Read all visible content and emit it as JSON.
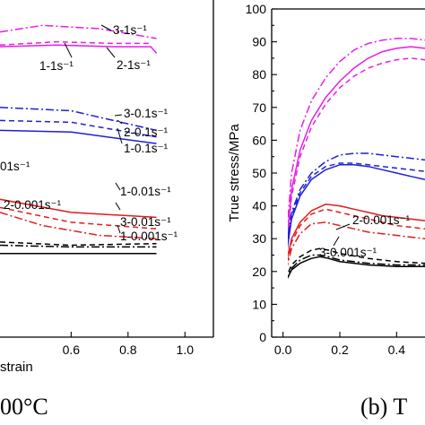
{
  "colors": {
    "magenta": "#e61ee6",
    "blue": "#1f1fd6",
    "red": "#e01c1c",
    "black": "#000000"
  },
  "chart_data": [
    {
      "type": "line",
      "panel": "left",
      "caption": "00°C",
      "xlabel": "strain",
      "ylabel": "",
      "x_tick_labels": [
        "0.6",
        "0.8",
        "1.0"
      ],
      "xlim": [
        0.35,
        1.1
      ],
      "ylim": [
        0,
        100
      ],
      "grid": false,
      "annotations": [
        "3-1s⁻¹",
        "1-1s⁻¹",
        "2-1s⁻¹",
        "3-0.1s⁻¹",
        "2-0.1s⁻¹",
        "1-0.1s⁻¹",
        "01s⁻¹",
        "1-0.01s⁻¹",
        "2-0.001s⁻¹",
        "3-0.01s⁻¹",
        "1-0.001s⁻¹"
      ],
      "series": [
        {
          "color": "magenta",
          "dash": "dashdot",
          "x": [
            0.35,
            0.5,
            0.7,
            0.9
          ],
          "y": [
            93,
            95,
            94,
            91
          ]
        },
        {
          "color": "magenta",
          "dash": "dash",
          "x": [
            0.35,
            0.55,
            0.75,
            0.88
          ],
          "y": [
            89,
            90,
            89.5,
            89.5
          ]
        },
        {
          "color": "magenta",
          "dash": "solid",
          "x": [
            0.35,
            0.55,
            0.75,
            0.88,
            0.9
          ],
          "y": [
            88.5,
            89,
            88.5,
            88.5,
            86.5
          ]
        },
        {
          "color": "blue",
          "dash": "dashdot",
          "x": [
            0.35,
            0.6,
            0.9
          ],
          "y": [
            70,
            69,
            63
          ]
        },
        {
          "color": "blue",
          "dash": "dash",
          "x": [
            0.35,
            0.6,
            0.9
          ],
          "y": [
            66,
            65.5,
            61
          ]
        },
        {
          "color": "blue",
          "dash": "solid",
          "x": [
            0.35,
            0.6,
            0.9
          ],
          "y": [
            63,
            62.5,
            59
          ]
        },
        {
          "color": "red",
          "dash": "solid",
          "x": [
            0.35,
            0.6,
            0.9
          ],
          "y": [
            42,
            38,
            36.5
          ]
        },
        {
          "color": "red",
          "dash": "dash",
          "x": [
            0.35,
            0.6,
            0.9
          ],
          "y": [
            39.5,
            35,
            33
          ]
        },
        {
          "color": "red",
          "dash": "dashdot",
          "x": [
            0.35,
            0.5,
            0.7,
            0.9
          ],
          "y": [
            38,
            34,
            31,
            30
          ]
        },
        {
          "color": "black",
          "dash": "dash",
          "x": [
            0.35,
            0.6,
            0.9
          ],
          "y": [
            29,
            28,
            28.5
          ]
        },
        {
          "color": "black",
          "dash": "dashdot",
          "x": [
            0.35,
            0.6,
            0.9
          ],
          "y": [
            28,
            27.5,
            27.5
          ]
        },
        {
          "color": "black",
          "dash": "solid",
          "x": [
            0.35,
            0.6,
            0.9
          ],
          "y": [
            25.5,
            25.5,
            25.5
          ]
        }
      ]
    },
    {
      "type": "line",
      "panel": "right",
      "caption": "(b) T",
      "xlabel": "",
      "ylabel": "True stress/MPa",
      "y_tick_labels": [
        "0",
        "10",
        "20",
        "30",
        "40",
        "50",
        "60",
        "70",
        "80",
        "90",
        "100"
      ],
      "x_tick_labels": [
        "0.0",
        "0.2",
        "0.4"
      ],
      "xlim": [
        -0.04,
        0.5
      ],
      "ylim": [
        0,
        100
      ],
      "grid": false,
      "annotations": [
        "2-0.001s⁻¹",
        "3-0.001s⁻¹"
      ],
      "series": [
        {
          "color": "magenta",
          "dash": "dashdot",
          "x": [
            0.0,
            0.01,
            0.03,
            0.06,
            0.1,
            0.15,
            0.2,
            0.25,
            0.3,
            0.35,
            0.4,
            0.45,
            0.5
          ],
          "y": [
            4,
            28,
            50,
            63,
            72,
            79,
            84,
            87.5,
            89.5,
            90.5,
            91,
            91,
            90.5
          ]
        },
        {
          "color": "magenta",
          "dash": "solid",
          "x": [
            0.0,
            0.01,
            0.03,
            0.06,
            0.1,
            0.15,
            0.2,
            0.25,
            0.3,
            0.35,
            0.4,
            0.45,
            0.5
          ],
          "y": [
            3,
            25,
            45,
            57,
            66,
            73,
            78,
            82,
            85,
            87,
            88,
            88.5,
            88
          ]
        },
        {
          "color": "magenta",
          "dash": "dash",
          "x": [
            0.0,
            0.01,
            0.03,
            0.06,
            0.1,
            0.15,
            0.2,
            0.25,
            0.3,
            0.35,
            0.4,
            0.45,
            0.5
          ],
          "y": [
            3,
            24,
            43,
            55,
            64,
            71,
            76,
            79.5,
            82,
            83.5,
            84.5,
            85,
            84.5
          ]
        },
        {
          "color": "blue",
          "dash": "dashdot",
          "x": [
            0.0,
            0.01,
            0.03,
            0.06,
            0.1,
            0.15,
            0.2,
            0.25,
            0.3,
            0.35,
            0.4,
            0.45,
            0.5
          ],
          "y": [
            8,
            26,
            38,
            45,
            50,
            53.5,
            55.5,
            56,
            56,
            55.5,
            55,
            54.5,
            54
          ]
        },
        {
          "color": "blue",
          "dash": "dash",
          "x": [
            0.0,
            0.01,
            0.03,
            0.06,
            0.1,
            0.15,
            0.2,
            0.25,
            0.3,
            0.35,
            0.4,
            0.45,
            0.5
          ],
          "y": [
            8,
            25,
            37,
            44,
            49,
            52,
            53,
            53,
            52.5,
            52,
            51.5,
            51,
            50.5
          ]
        },
        {
          "color": "blue",
          "dash": "solid",
          "x": [
            0.0,
            0.01,
            0.03,
            0.06,
            0.1,
            0.15,
            0.2,
            0.25,
            0.3,
            0.35,
            0.4,
            0.45,
            0.5
          ],
          "y": [
            8,
            24,
            36,
            43,
            48,
            51,
            52.5,
            52.5,
            52,
            51,
            50,
            49,
            48
          ]
        },
        {
          "color": "red",
          "dash": "solid",
          "x": [
            0.0,
            0.01,
            0.03,
            0.06,
            0.1,
            0.15,
            0.2,
            0.25,
            0.3,
            0.35,
            0.4,
            0.45,
            0.5
          ],
          "y": [
            12,
            22,
            30,
            35,
            38.5,
            40.5,
            40,
            39,
            38,
            37,
            36.5,
            36,
            35.5
          ]
        },
        {
          "color": "red",
          "dash": "dash",
          "x": [
            0.0,
            0.01,
            0.03,
            0.06,
            0.1,
            0.15,
            0.2,
            0.25,
            0.3,
            0.35,
            0.4,
            0.45,
            0.5
          ],
          "y": [
            12,
            21,
            29,
            34,
            37.5,
            39,
            38,
            37,
            36,
            35,
            34,
            33.5,
            33
          ]
        },
        {
          "color": "red",
          "dash": "dashdot",
          "x": [
            0.0,
            0.01,
            0.03,
            0.06,
            0.1,
            0.15,
            0.2,
            0.25,
            0.3,
            0.35,
            0.4,
            0.45,
            0.5
          ],
          "y": [
            11,
            20,
            27,
            31.5,
            34.5,
            35,
            34,
            33,
            32,
            31.5,
            31,
            30.5,
            30
          ]
        },
        {
          "color": "black",
          "dash": "dash",
          "x": [
            0.0,
            0.01,
            0.03,
            0.06,
            0.1,
            0.13,
            0.16,
            0.2,
            0.3,
            0.4,
            0.5
          ],
          "y": [
            12,
            18,
            22,
            24.5,
            26.5,
            27,
            26.5,
            25.5,
            24,
            23,
            22.5
          ]
        },
        {
          "color": "black",
          "dash": "dashdot",
          "x": [
            0.0,
            0.01,
            0.03,
            0.06,
            0.1,
            0.13,
            0.16,
            0.2,
            0.3,
            0.4,
            0.5
          ],
          "y": [
            12,
            17.5,
            21,
            23.5,
            25,
            25,
            24.5,
            23.5,
            22.5,
            22,
            22
          ]
        },
        {
          "color": "black",
          "dash": "solid",
          "x": [
            0.0,
            0.01,
            0.03,
            0.06,
            0.1,
            0.13,
            0.16,
            0.2,
            0.3,
            0.4,
            0.5
          ],
          "y": [
            12,
            17,
            20.5,
            22.5,
            24,
            24.5,
            24,
            23,
            22,
            21.5,
            21.5
          ]
        }
      ]
    }
  ]
}
